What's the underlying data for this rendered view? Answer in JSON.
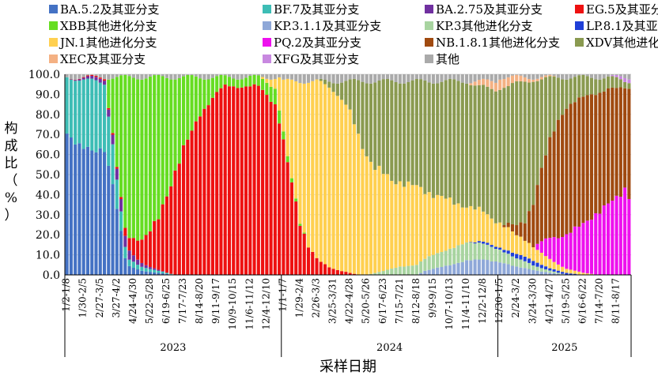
{
  "chart_data": {
    "type": "bar",
    "stacked": true,
    "ylabel": "构成比（%）",
    "xlabel": "采样日期",
    "ylim": [
      0,
      100
    ],
    "yticks": [
      "0.0",
      "10.0",
      "20.0",
      "30.0",
      "40.0",
      "50.0",
      "60.0",
      "70.0",
      "80.0",
      "90.0",
      "100.0"
    ],
    "legend_position": "top",
    "years": [
      "2023",
      "2024",
      "2025"
    ],
    "year_spans": [
      [
        0,
        51
      ],
      [
        52,
        103
      ],
      [
        104,
        135
      ]
    ],
    "tick_labels": [
      {
        "i": 0,
        "label": "1/2-1/8"
      },
      {
        "i": 4,
        "label": "1/30-2/5"
      },
      {
        "i": 8,
        "label": "2/27-3/5"
      },
      {
        "i": 12,
        "label": "3/27-4/2"
      },
      {
        "i": 16,
        "label": "4/24-4/30"
      },
      {
        "i": 20,
        "label": "5/22-5/28"
      },
      {
        "i": 24,
        "label": "6/19-6/25"
      },
      {
        "i": 28,
        "label": "7/17-7/23"
      },
      {
        "i": 32,
        "label": "8/14-8/20"
      },
      {
        "i": 36,
        "label": "9/11-9/17"
      },
      {
        "i": 40,
        "label": "10/9-10/15"
      },
      {
        "i": 44,
        "label": "11/6-11/12"
      },
      {
        "i": 48,
        "label": "12/4-12/10"
      },
      {
        "i": 52,
        "label": "1/1-1/7"
      },
      {
        "i": 56,
        "label": "1/29-2/4"
      },
      {
        "i": 60,
        "label": "2/26-3/3"
      },
      {
        "i": 64,
        "label": "3/25-3/31"
      },
      {
        "i": 68,
        "label": "4/22-4/28"
      },
      {
        "i": 72,
        "label": "5/20-5/26"
      },
      {
        "i": 76,
        "label": "6/17-6/23"
      },
      {
        "i": 80,
        "label": "7/15-7/21"
      },
      {
        "i": 84,
        "label": "8/12-8/18"
      },
      {
        "i": 88,
        "label": "9/9-9/15"
      },
      {
        "i": 92,
        "label": "10/7-10/13"
      },
      {
        "i": 96,
        "label": "11/4-11/10"
      },
      {
        "i": 100,
        "label": "12/2-12/8"
      },
      {
        "i": 104,
        "label": "12/30-1/5"
      },
      {
        "i": 108,
        "label": "2/24-3/2"
      },
      {
        "i": 112,
        "label": "3/24-3/30"
      },
      {
        "i": 116,
        "label": "4/21-4/27"
      },
      {
        "i": 120,
        "label": "5/19-5/25"
      },
      {
        "i": 124,
        "label": "6/16-6/22"
      },
      {
        "i": 128,
        "label": "7/14-7/20"
      },
      {
        "i": 132,
        "label": "8/11-8/17"
      }
    ],
    "series": [
      {
        "name": "BA.5.2及其亚分支",
        "color": "#4472C4",
        "keys": [
          [
            0,
            72
          ],
          [
            3,
            65
          ],
          [
            6,
            62
          ],
          [
            9,
            58
          ],
          [
            11,
            45
          ],
          [
            13,
            22
          ],
          [
            14,
            8
          ],
          [
            15,
            4
          ],
          [
            18,
            2
          ],
          [
            22,
            1
          ],
          [
            26,
            0
          ],
          [
            135,
            0
          ]
        ]
      },
      {
        "name": "BF.7及其亚分支",
        "color": "#3DBDB5",
        "keys": [
          [
            0,
            28
          ],
          [
            3,
            34
          ],
          [
            6,
            35
          ],
          [
            9,
            30
          ],
          [
            11,
            20
          ],
          [
            13,
            10
          ],
          [
            14,
            5
          ],
          [
            15,
            3
          ],
          [
            18,
            2
          ],
          [
            22,
            1
          ],
          [
            26,
            0
          ],
          [
            135,
            0
          ]
        ]
      },
      {
        "name": "BA.2.75及其亚分支",
        "color": "#7030A0",
        "keys": [
          [
            0,
            0
          ],
          [
            9,
            2
          ],
          [
            11,
            5
          ],
          [
            13,
            6
          ],
          [
            14,
            5
          ],
          [
            16,
            3
          ],
          [
            20,
            1
          ],
          [
            24,
            0
          ],
          [
            135,
            0
          ]
        ]
      },
      {
        "name": "EG.5及其亚分支",
        "color": "#EE1111",
        "keys": [
          [
            0,
            0
          ],
          [
            13,
            1
          ],
          [
            15,
            6
          ],
          [
            18,
            12
          ],
          [
            20,
            18
          ],
          [
            22,
            25
          ],
          [
            24,
            38
          ],
          [
            26,
            52
          ],
          [
            28,
            62
          ],
          [
            30,
            70
          ],
          [
            32,
            80
          ],
          [
            34,
            86
          ],
          [
            36,
            90
          ],
          [
            38,
            93
          ],
          [
            40,
            94
          ],
          [
            42,
            94
          ],
          [
            44,
            93
          ],
          [
            46,
            92
          ],
          [
            48,
            90
          ],
          [
            50,
            85
          ],
          [
            52,
            65
          ],
          [
            54,
            45
          ],
          [
            56,
            25
          ],
          [
            58,
            14
          ],
          [
            60,
            8
          ],
          [
            62,
            5
          ],
          [
            64,
            3
          ],
          [
            66,
            2
          ],
          [
            68,
            1
          ],
          [
            70,
            0
          ],
          [
            135,
            0
          ]
        ]
      },
      {
        "name": "XBB其他进化分支",
        "color": "#66DD22",
        "keys": [
          [
            0,
            0
          ],
          [
            9,
            0
          ],
          [
            11,
            27
          ],
          [
            13,
            60
          ],
          [
            14,
            72
          ],
          [
            16,
            78
          ],
          [
            18,
            80
          ],
          [
            20,
            75
          ],
          [
            22,
            70
          ],
          [
            24,
            58
          ],
          [
            26,
            46
          ],
          [
            28,
            35
          ],
          [
            30,
            28
          ],
          [
            32,
            18
          ],
          [
            34,
            12
          ],
          [
            36,
            8
          ],
          [
            38,
            5
          ],
          [
            40,
            4
          ],
          [
            42,
            4
          ],
          [
            44,
            5
          ],
          [
            46,
            5
          ],
          [
            48,
            6
          ],
          [
            50,
            8
          ],
          [
            52,
            4
          ],
          [
            54,
            2
          ],
          [
            56,
            1
          ],
          [
            58,
            0
          ],
          [
            135,
            0
          ]
        ]
      },
      {
        "name": "KP.3.1.1及其亚分支",
        "color": "#8FA8D8",
        "keys": [
          [
            0,
            0
          ],
          [
            84,
            0
          ],
          [
            86,
            2
          ],
          [
            88,
            3
          ],
          [
            90,
            4
          ],
          [
            92,
            5
          ],
          [
            96,
            7
          ],
          [
            100,
            8
          ],
          [
            104,
            6
          ],
          [
            108,
            4
          ],
          [
            112,
            2
          ],
          [
            116,
            1
          ],
          [
            120,
            0
          ],
          [
            135,
            0
          ]
        ]
      },
      {
        "name": "KP.3其他进化分支",
        "color": "#A8D4A0",
        "keys": [
          [
            0,
            0
          ],
          [
            72,
            0
          ],
          [
            76,
            2
          ],
          [
            80,
            4
          ],
          [
            84,
            5
          ],
          [
            88,
            7
          ],
          [
            92,
            8
          ],
          [
            96,
            9
          ],
          [
            100,
            8
          ],
          [
            104,
            6
          ],
          [
            108,
            4
          ],
          [
            112,
            2
          ],
          [
            116,
            1
          ],
          [
            120,
            0
          ],
          [
            135,
            0
          ]
        ]
      },
      {
        "name": "LP.8.1及其亚分支",
        "color": "#1F3FD8",
        "keys": [
          [
            0,
            0
          ],
          [
            96,
            0
          ],
          [
            100,
            1
          ],
          [
            104,
            1
          ],
          [
            108,
            2
          ],
          [
            112,
            2
          ],
          [
            116,
            1
          ],
          [
            120,
            1
          ],
          [
            124,
            0
          ],
          [
            135,
            0
          ]
        ]
      },
      {
        "name": "JN.1其他进化分支",
        "color": "#FFD050",
        "keys": [
          [
            0,
            0
          ],
          [
            46,
            0
          ],
          [
            48,
            2
          ],
          [
            50,
            5
          ],
          [
            52,
            26
          ],
          [
            54,
            48
          ],
          [
            56,
            68
          ],
          [
            58,
            80
          ],
          [
            60,
            86
          ],
          [
            62,
            89
          ],
          [
            64,
            90
          ],
          [
            66,
            88
          ],
          [
            68,
            80
          ],
          [
            70,
            70
          ],
          [
            72,
            60
          ],
          [
            74,
            52
          ],
          [
            76,
            48
          ],
          [
            78,
            44
          ],
          [
            80,
            42
          ],
          [
            82,
            40
          ],
          [
            84,
            38
          ],
          [
            86,
            34
          ],
          [
            88,
            30
          ],
          [
            90,
            27
          ],
          [
            92,
            24
          ],
          [
            96,
            18
          ],
          [
            100,
            15
          ],
          [
            104,
            12
          ],
          [
            108,
            9
          ],
          [
            112,
            6
          ],
          [
            116,
            4
          ],
          [
            120,
            2
          ],
          [
            124,
            1
          ],
          [
            128,
            0
          ],
          [
            135,
            0
          ]
        ]
      },
      {
        "name": "PQ.2及其亚分支",
        "color": "#EE11EE",
        "keys": [
          [
            0,
            0
          ],
          [
            112,
            0
          ],
          [
            114,
            5
          ],
          [
            116,
            10
          ],
          [
            118,
            13
          ],
          [
            120,
            16
          ],
          [
            122,
            20
          ],
          [
            124,
            24
          ],
          [
            126,
            28
          ],
          [
            128,
            31
          ],
          [
            130,
            34
          ],
          [
            132,
            38
          ],
          [
            134,
            44
          ],
          [
            135,
            40
          ]
        ]
      },
      {
        "name": "NB.1.8.1其他进化分支",
        "color": "#A04A10",
        "keys": [
          [
            0,
            0
          ],
          [
            104,
            0
          ],
          [
            106,
            2
          ],
          [
            108,
            5
          ],
          [
            110,
            8
          ],
          [
            112,
            18
          ],
          [
            114,
            32
          ],
          [
            116,
            45
          ],
          [
            118,
            55
          ],
          [
            120,
            60
          ],
          [
            122,
            62
          ],
          [
            124,
            62
          ],
          [
            126,
            60
          ],
          [
            128,
            58
          ],
          [
            130,
            56
          ],
          [
            132,
            54
          ],
          [
            134,
            51
          ],
          [
            135,
            55
          ]
        ]
      },
      {
        "name": "XDV其他进化分支",
        "color": "#8A9A50",
        "keys": [
          [
            0,
            0
          ],
          [
            60,
            0
          ],
          [
            62,
            2
          ],
          [
            64,
            4
          ],
          [
            66,
            9
          ],
          [
            68,
            16
          ],
          [
            70,
            27
          ],
          [
            72,
            36
          ],
          [
            74,
            44
          ],
          [
            76,
            46
          ],
          [
            78,
            48
          ],
          [
            80,
            49
          ],
          [
            82,
            52
          ],
          [
            84,
            52
          ],
          [
            86,
            54
          ],
          [
            88,
            56
          ],
          [
            90,
            58
          ],
          [
            92,
            60
          ],
          [
            96,
            62
          ],
          [
            100,
            62
          ],
          [
            104,
            66
          ],
          [
            108,
            68
          ],
          [
            110,
            60
          ],
          [
            112,
            52
          ],
          [
            114,
            40
          ],
          [
            116,
            28
          ],
          [
            118,
            20
          ],
          [
            120,
            14
          ],
          [
            122,
            12
          ],
          [
            124,
            10
          ],
          [
            126,
            8
          ],
          [
            128,
            7
          ],
          [
            130,
            6
          ],
          [
            132,
            5
          ],
          [
            134,
            3
          ],
          [
            135,
            3
          ]
        ]
      },
      {
        "name": "XEC及其亚分支",
        "color": "#F4B183",
        "keys": [
          [
            0,
            0
          ],
          [
            96,
            0
          ],
          [
            98,
            2
          ],
          [
            100,
            3
          ],
          [
            102,
            4
          ],
          [
            104,
            5
          ],
          [
            106,
            4
          ],
          [
            108,
            3
          ],
          [
            110,
            2
          ],
          [
            112,
            1
          ],
          [
            114,
            1
          ],
          [
            118,
            0
          ],
          [
            135,
            0
          ]
        ]
      },
      {
        "name": "XFG及其亚分支",
        "color": "#C888E0",
        "keys": [
          [
            0,
            0
          ],
          [
            130,
            0
          ],
          [
            132,
            1
          ],
          [
            134,
            2
          ],
          [
            135,
            2
          ]
        ]
      },
      {
        "name": "其他",
        "color": "#AAAAAA",
        "keys": [
          [
            0,
            0
          ],
          [
            135,
            0
          ]
        ]
      }
    ]
  }
}
